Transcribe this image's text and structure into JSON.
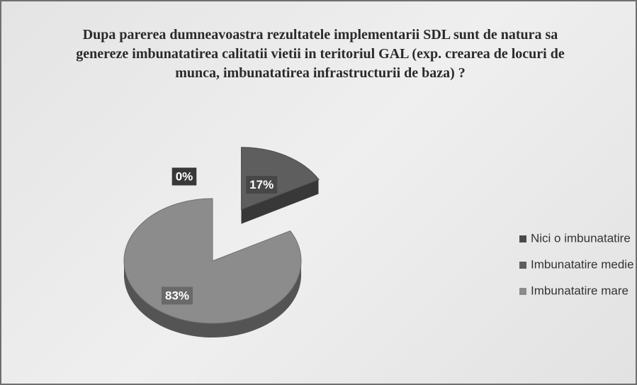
{
  "chart_data": {
    "type": "pie",
    "title": "Dupa parerea dumneavoastra rezultatele implementarii SDL sunt de natura sa genereze imbunatatirea calitatii vietii in teritoriul GAL (exp. crearea de locuri de munca, imbunatatirea infrastructurii de baza) ?",
    "categories": [
      "Nici o imbunatatire",
      "Imbunatatire medie",
      "Imbunatatire mare"
    ],
    "values": [
      0,
      17,
      83
    ],
    "value_labels": [
      "0%",
      "17%",
      "83%"
    ],
    "colors": [
      "#4a4a4a",
      "#5e5e5e",
      "#8c8c8c"
    ],
    "legend": "right"
  }
}
